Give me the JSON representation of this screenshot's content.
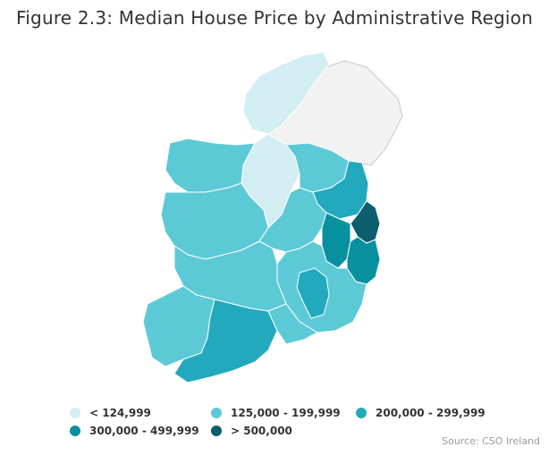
{
  "title": "Figure 2.3: Median House Price by Administrative Region",
  "source": "Source: CSO Ireland",
  "legend": [
    {
      "label": "< 124,999",
      "color": "#d3eef3"
    },
    {
      "label": "125,000 - 199,999",
      "color": "#5ccad6"
    },
    {
      "label": "200,000 - 299,999",
      "color": "#22a9bd"
    },
    {
      "label": "300,000 - 499,999",
      "color": "#07919f"
    },
    {
      "label": "> 500,000",
      "color": "#0b5e6e"
    }
  ],
  "colors": {
    "northern_ireland": "#f2f2f2",
    "border": "#ffffff",
    "outline": "#c8c8c8"
  }
}
